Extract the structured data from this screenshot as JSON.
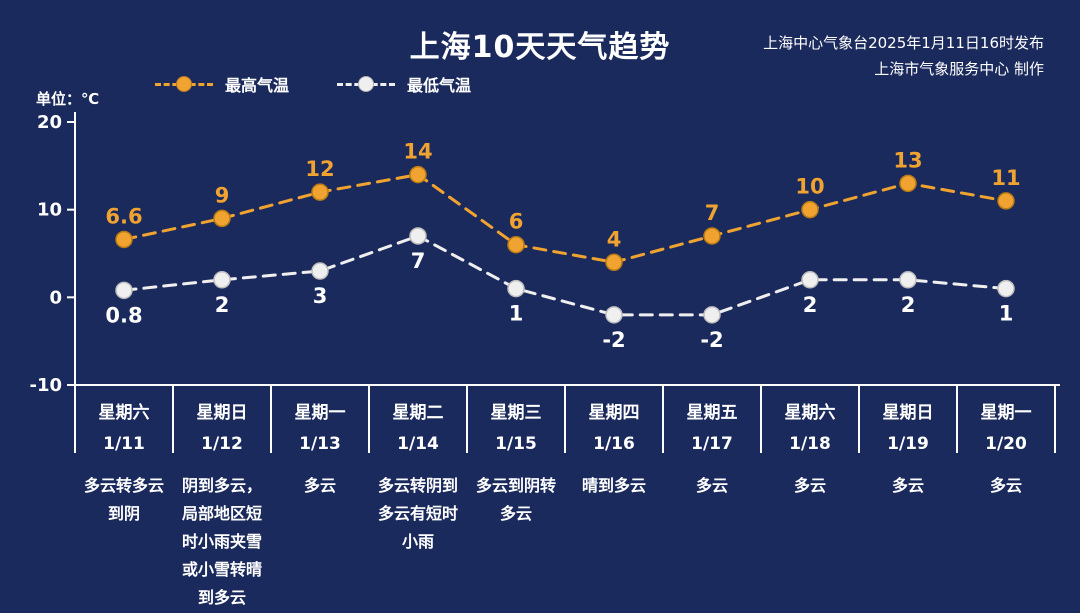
{
  "header": {
    "title": "上海10天天气趋势",
    "publisher_line1": "上海中心气象台2025年1月11日16时发布",
    "publisher_line2": "上海市气象服务中心 制作"
  },
  "legend": {
    "high_label": "最高气温",
    "low_label": "最低气温"
  },
  "unit_label": "单位：℃",
  "colors": {
    "background": "#1b2a5c",
    "high": "#f0a330",
    "high_edge": "#b97c14",
    "low": "#efefef",
    "low_edge": "#bfbfbf",
    "axis": "#ffffff",
    "text": "#ffffff"
  },
  "chart_data": {
    "type": "line",
    "title": "上海10天天气趋势",
    "xlabel": "",
    "ylabel": "单位：℃",
    "ylim": [
      -10,
      20
    ],
    "yticks": [
      20,
      10,
      0,
      -10
    ],
    "grid": false,
    "legend_position": "top-left",
    "line_style": "dashed",
    "categories_day": [
      "星期六",
      "星期日",
      "星期一",
      "星期二",
      "星期三",
      "星期四",
      "星期五",
      "星期六",
      "星期日",
      "星期一"
    ],
    "categories_date": [
      "1/11",
      "1/12",
      "1/13",
      "1/14",
      "1/15",
      "1/16",
      "1/17",
      "1/18",
      "1/19",
      "1/20"
    ],
    "series": [
      {
        "name": "最高气温",
        "color": "#f0a330",
        "values": [
          6.6,
          9,
          12,
          14,
          6,
          4,
          7,
          10,
          13,
          11
        ]
      },
      {
        "name": "最低气温",
        "color": "#efefef",
        "values": [
          0.8,
          2,
          3,
          7,
          1,
          -2,
          -2,
          2,
          2,
          1
        ]
      }
    ]
  },
  "weather_desc": [
    "多云转多云到阴",
    "阴到多云，局部地区短时小雨夹雪或小雪转晴到多云",
    "多云",
    "多云转阴到多云有短时小雨",
    "多云到阴转多云",
    "晴到多云",
    "多云",
    "多云",
    "多云",
    "多云"
  ]
}
